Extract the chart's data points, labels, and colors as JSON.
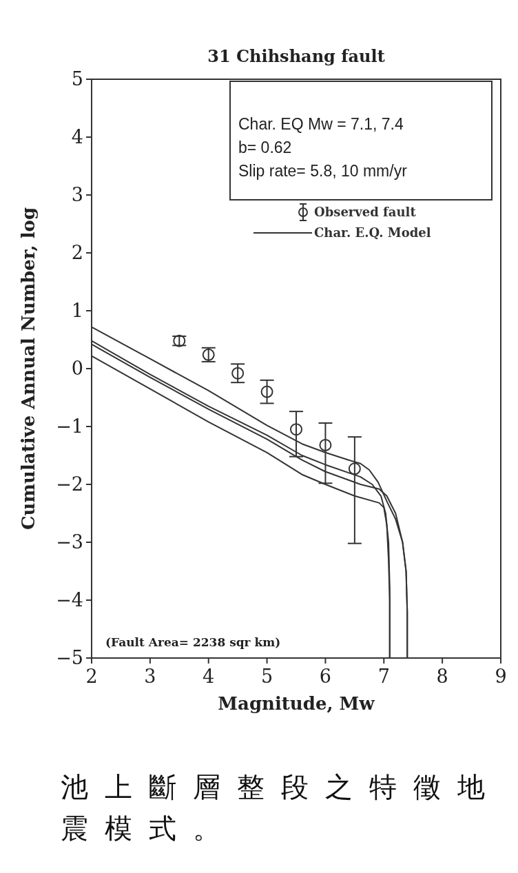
{
  "chart_data": {
    "type": "line",
    "title": "31 Chihshang fault",
    "xlabel": "Magnitude, Mw",
    "ylabel": "Cumulative Annual Number, log",
    "xlim": [
      2,
      9
    ],
    "xticks": [
      2,
      3,
      4,
      5,
      6,
      7,
      8,
      9
    ],
    "ylim": [
      -5,
      5
    ],
    "yticks": [
      -5,
      -4,
      -3,
      -2,
      -1,
      0,
      1,
      2,
      3,
      4,
      5
    ],
    "grid": false,
    "legend": "top right",
    "line_style": "solid",
    "series": [
      {
        "name": "Observed fault",
        "type": "scatter",
        "marker": "circle",
        "color": "#333333",
        "x": [
          3.5,
          4,
          4.5,
          5,
          5.5,
          6,
          6.5
        ],
        "values": [
          0.48,
          0.24,
          -0.08,
          -0.4,
          -1.05,
          -1.32,
          -1.73
        ],
        "errors": [
          0.08,
          0.12,
          0.16,
          0.2,
          [
            -1.52,
            -0.74
          ],
          [
            -1.98,
            -0.94
          ],
          [
            -3.02,
            -1.18
          ]
        ]
      },
      {
        "name": "Char. E.Q. Model",
        "type": "line",
        "color": "#333333",
        "x": [
          2,
          3,
          4,
          5,
          5.6,
          6,
          6.4,
          6.6,
          6.75,
          6.9,
          7.05,
          7.2,
          7.32,
          7.38,
          7.4,
          7.4
        ],
        "values": [
          0.72,
          0.17,
          -0.38,
          -0.98,
          -1.3,
          -1.45,
          -1.58,
          -1.64,
          -1.75,
          -1.96,
          -2.29,
          -2.6,
          -3.0,
          -3.5,
          -4.2,
          -5
        ]
      },
      {
        "type": "line",
        "color": "#333333",
        "x": [
          2,
          3,
          4,
          5,
          5.6,
          6,
          6.6,
          6.8,
          6.95,
          7.03,
          7.08,
          7.1,
          7.1
        ],
        "values": [
          0.48,
          -0.1,
          -0.65,
          -1.15,
          -1.5,
          -1.66,
          -1.87,
          -2.0,
          -2.2,
          -2.5,
          -3.0,
          -3.8,
          -5
        ]
      },
      {
        "type": "line",
        "color": "#333333",
        "x": [
          2,
          3,
          4,
          5,
          5.6,
          6,
          6.6,
          6.92,
          7.05,
          7.2,
          7.32,
          7.38,
          7.4,
          7.4
        ],
        "values": [
          0.42,
          -0.15,
          -0.7,
          -1.22,
          -1.58,
          -1.78,
          -2.0,
          -2.08,
          -2.2,
          -2.5,
          -3.0,
          -3.5,
          -4.2,
          -5
        ]
      },
      {
        "type": "line",
        "color": "#333333",
        "x": [
          2,
          3,
          4,
          5,
          5.6,
          6,
          6.5,
          6.92,
          7.0,
          7.05,
          7.08,
          7.1,
          7.1
        ],
        "values": [
          0.22,
          -0.35,
          -0.92,
          -1.45,
          -1.83,
          -2.0,
          -2.2,
          -2.32,
          -2.4,
          -2.7,
          -3.3,
          -4.0,
          -5
        ]
      }
    ],
    "annotations": [
      "Char. EQ Mw = 7.1, 7.4",
      "b= 0.62",
      "Slip rate= 5.8, 10 mm/yr",
      "(Fault Area= 2238 sqr km)",
      "池上斷層整段之特徵地震模式。"
    ]
  }
}
